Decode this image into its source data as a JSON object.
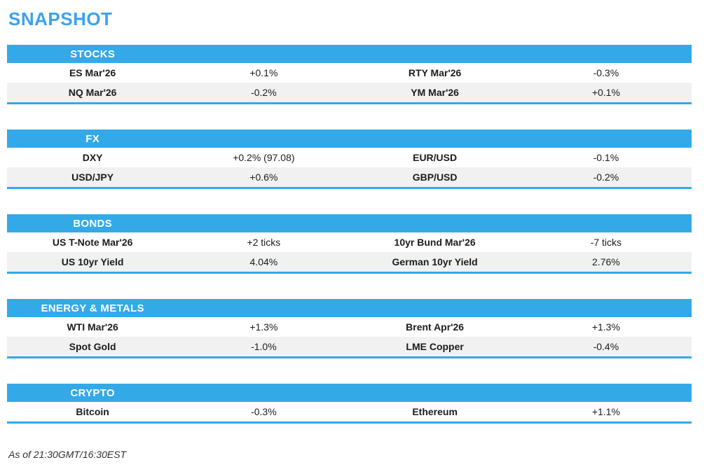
{
  "colors": {
    "accent": "#33A9E8",
    "title_text": "#3BA2F0",
    "row_alt": "#F1F1F2",
    "header_text": "#FFFFFF",
    "body_text": "#1C1C1E"
  },
  "chart_data": {
    "type": "table",
    "title": "SNAPSHOT",
    "footnote": "As of 21:30GMT/16:30EST",
    "columns": [
      "instrument",
      "change",
      "instrument",
      "change"
    ],
    "sections": [
      {
        "header": "STOCKS",
        "rows": [
          [
            "ES Mar'26",
            "+0.1%",
            "RTY Mar'26",
            "-0.3%"
          ],
          [
            "NQ Mar'26",
            "-0.2%",
            "YM Mar'26",
            "+0.1%"
          ]
        ]
      },
      {
        "header": "FX",
        "rows": [
          [
            "DXY",
            "+0.2% (97.08)",
            "EUR/USD",
            "-0.1%"
          ],
          [
            "USD/JPY",
            "+0.6%",
            "GBP/USD",
            "-0.2%"
          ]
        ]
      },
      {
        "header": "BONDS",
        "rows": [
          [
            "US T-Note Mar'26",
            "+2 ticks",
            "10yr Bund Mar'26",
            "-7 ticks"
          ],
          [
            "US 10yr Yield",
            "4.04%",
            "German 10yr Yield",
            "2.76%"
          ]
        ]
      },
      {
        "header": "ENERGY & METALS",
        "rows": [
          [
            "WTI Mar'26",
            "+1.3%",
            "Brent Apr'26",
            "+1.3%"
          ],
          [
            "Spot Gold",
            "-1.0%",
            "LME Copper",
            "-0.4%"
          ]
        ]
      },
      {
        "header": "CRYPTO",
        "rows": [
          [
            "Bitcoin",
            "-0.3%",
            "Ethereum",
            "+1.1%"
          ]
        ]
      }
    ]
  }
}
